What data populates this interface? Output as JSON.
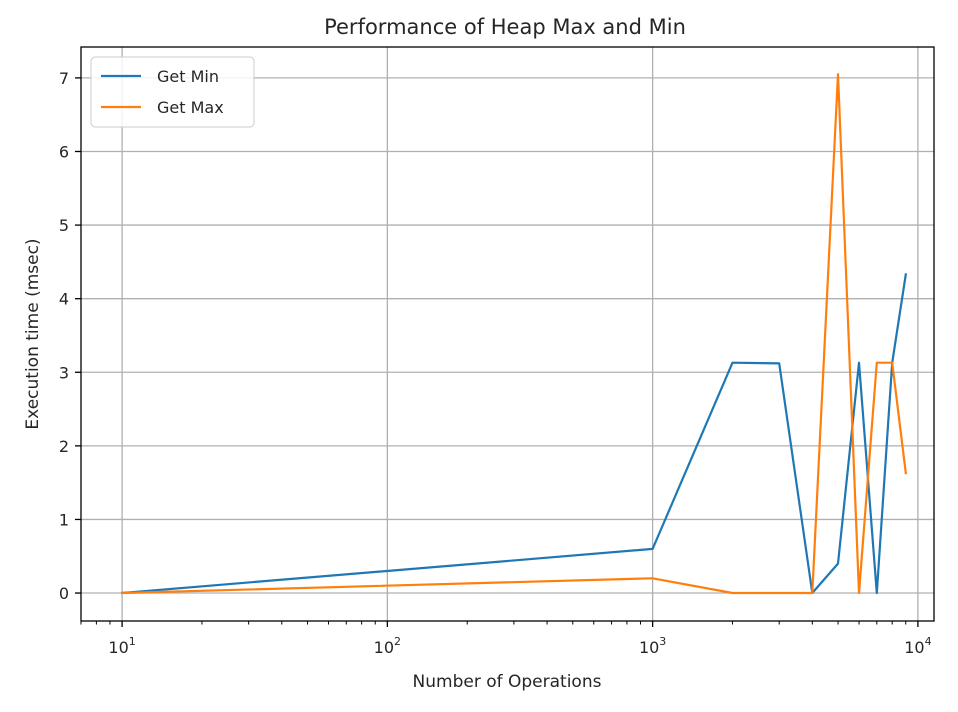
{
  "chart_data": {
    "type": "line",
    "title": "Performance of Heap Max and Min",
    "xlabel": "Number of Operations",
    "ylabel": "Execution time (msec)",
    "xscale": "log",
    "xlim": [
      7,
      11500
    ],
    "ylim": [
      -0.38,
      7.42
    ],
    "grid": true,
    "legend_position": "top-left",
    "x_ticks": [
      {
        "value": 10,
        "base": "10",
        "exp": "1"
      },
      {
        "value": 100,
        "base": "10",
        "exp": "2"
      },
      {
        "value": 1000,
        "base": "10",
        "exp": "3"
      },
      {
        "value": 10000,
        "base": "10",
        "exp": "4"
      }
    ],
    "y_ticks": [
      {
        "value": 0,
        "label": "0"
      },
      {
        "value": 1,
        "label": "1"
      },
      {
        "value": 2,
        "label": "2"
      },
      {
        "value": 3,
        "label": "3"
      },
      {
        "value": 4,
        "label": "4"
      },
      {
        "value": 5,
        "label": "5"
      },
      {
        "value": 6,
        "label": "6"
      },
      {
        "value": 7,
        "label": "7"
      }
    ],
    "series": [
      {
        "name": "Get Min",
        "color": "#1f77b4",
        "x": [
          10,
          1000,
          2000,
          3000,
          4000,
          5000,
          6000,
          7000,
          8000,
          9000
        ],
        "y": [
          0.0,
          0.6,
          3.13,
          3.12,
          0.0,
          0.4,
          3.13,
          0.0,
          3.13,
          4.33
        ]
      },
      {
        "name": "Get Max",
        "color": "#ff7f0e",
        "x": [
          10,
          1000,
          2000,
          3000,
          4000,
          5000,
          6000,
          7000,
          8000,
          9000
        ],
        "y": [
          0.0,
          0.2,
          0.0,
          0.0,
          0.0,
          7.05,
          0.0,
          3.13,
          3.13,
          1.63
        ]
      }
    ]
  }
}
